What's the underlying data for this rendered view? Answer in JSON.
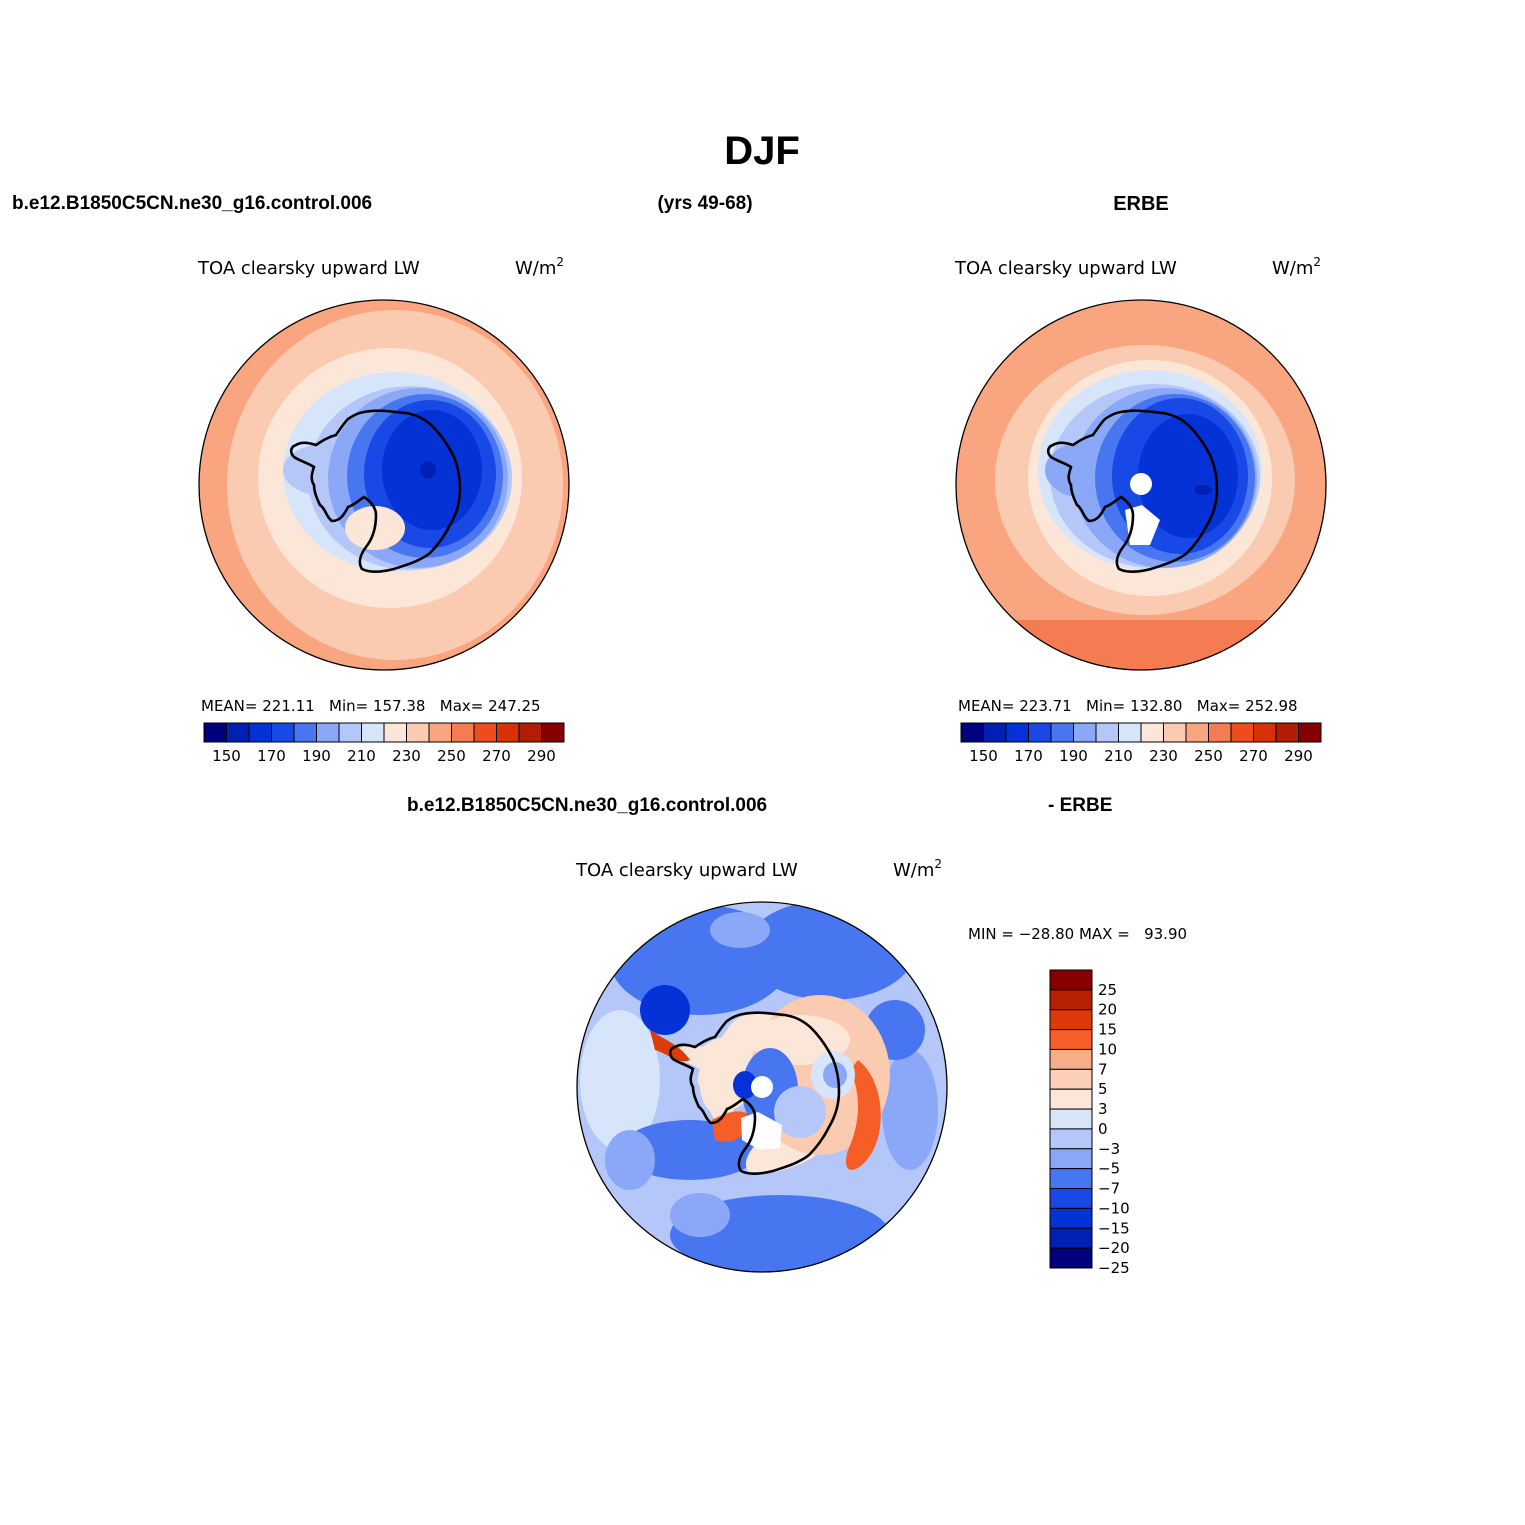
{
  "main_title": "DJF",
  "case_name": "b.e12.B1850C5CN.ne30_g16.control.006",
  "years": "(yrs 49-68)",
  "obs_name": "ERBE",
  "diff_case_name": "b.e12.B1850C5CN.ne30_g16.control.006",
  "diff_obs_name": "- ERBE",
  "panels": [
    {
      "variable": "TOA clearsky upward LW",
      "units_base": "W/m",
      "units_exp": "2",
      "stats": "MEAN= 221.11   Min= 157.38   Max= 247.25"
    },
    {
      "variable": "TOA clearsky upward LW",
      "units_base": "W/m",
      "units_exp": "2",
      "stats": "MEAN= 223.71   Min= 132.80   Max= 252.98"
    },
    {
      "variable": "TOA clearsky upward LW",
      "units_base": "W/m",
      "units_exp": "2",
      "stats": "MIN = −28.80 MAX =   93.90"
    }
  ],
  "field_colorbar": {
    "colors": [
      "#00007f",
      "#0020b4",
      "#0432d6",
      "#1848e6",
      "#4876f0",
      "#8aa8f7",
      "#b5c7f9",
      "#d7e5fb",
      "#fce6d8",
      "#fbcbb1",
      "#f9a57f",
      "#f57c52",
      "#ef4c1e",
      "#d83108",
      "#b21d04",
      "#870000"
    ],
    "tick_labels": [
      "150",
      "170",
      "190",
      "210",
      "230",
      "250",
      "270",
      "290"
    ]
  },
  "diff_colorbar": {
    "colors": [
      "#870000",
      "#b82003",
      "#de3a09",
      "#f65e28",
      "#f9ad87",
      "#fccfb8",
      "#fce6d8",
      "#d7e5fb",
      "#b5c7f9",
      "#8aa8f7",
      "#4876f0",
      "#1848e6",
      "#0432d6",
      "#0020b4",
      "#00007f"
    ],
    "tick_labels": [
      "25",
      "20",
      "15",
      "10",
      "7",
      "5",
      "3",
      "0",
      "−3",
      "−5",
      "−7",
      "−10",
      "−15",
      "−20",
      "−25"
    ]
  }
}
